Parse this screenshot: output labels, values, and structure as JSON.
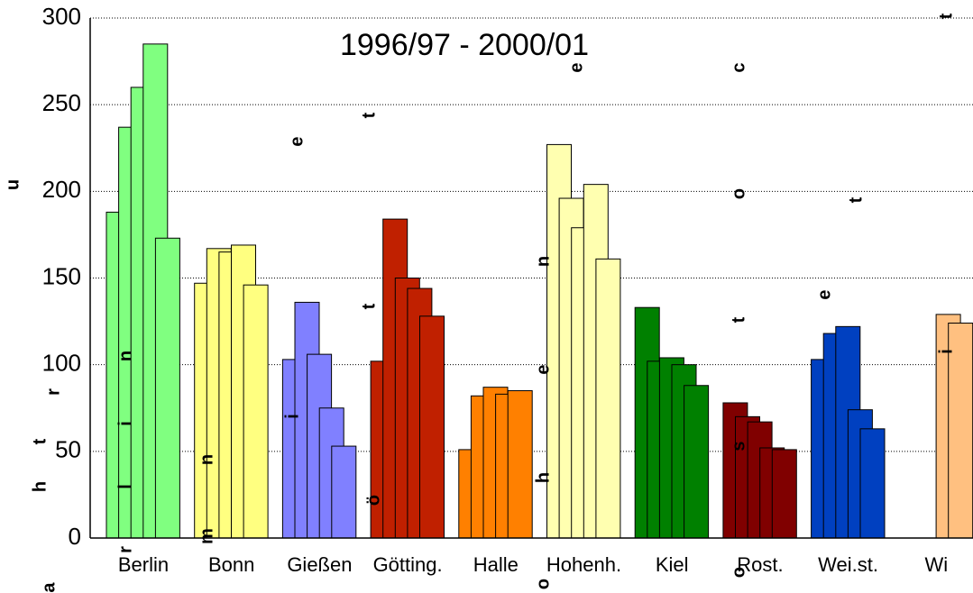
{
  "chart_data": {
    "type": "bar",
    "title": "1996/97 - 2000/01",
    "categories": [
      "Berlin",
      "Bonn",
      "Gießen",
      "Götting.",
      "Halle",
      "Hohenh.",
      "Kiel",
      "Rost.",
      "Wei.st.",
      "Wi"
    ],
    "values": [
      [
        188,
        237,
        260,
        285,
        173
      ],
      [
        147,
        167,
        165,
        169,
        146
      ],
      [
        103,
        136,
        106,
        75,
        53
      ],
      [
        102,
        184,
        150,
        144,
        128
      ],
      [
        51,
        82,
        87,
        83,
        85
      ],
      [
        227,
        196,
        179,
        204,
        161
      ],
      [
        133,
        102,
        104,
        100,
        88
      ],
      [
        78,
        70,
        67,
        52,
        51
      ],
      [
        103,
        118,
        122,
        74,
        63
      ],
      [
        null,
        null,
        null,
        129,
        124
      ]
    ],
    "colors": [
      "#80ff80",
      "#ffff80",
      "#8080ff",
      "#c02000",
      "#ff8000",
      "#ffffb0",
      "#008000",
      "#800000",
      "#0040c0",
      "#ffc080"
    ],
    "ylim": [
      0,
      300
    ],
    "yticks": [
      0,
      50,
      100,
      150,
      200,
      250,
      300
    ],
    "grid": true,
    "annotations": [
      "a",
      "h",
      "t",
      "r",
      "u",
      "r",
      "l",
      "i",
      "n",
      "m",
      "n",
      "i",
      "e",
      "ö",
      "t",
      "t",
      "h",
      "e",
      "n",
      "o",
      "e",
      "c",
      "o",
      "t",
      "s",
      "o",
      "t",
      "e",
      "i",
      "t"
    ]
  }
}
